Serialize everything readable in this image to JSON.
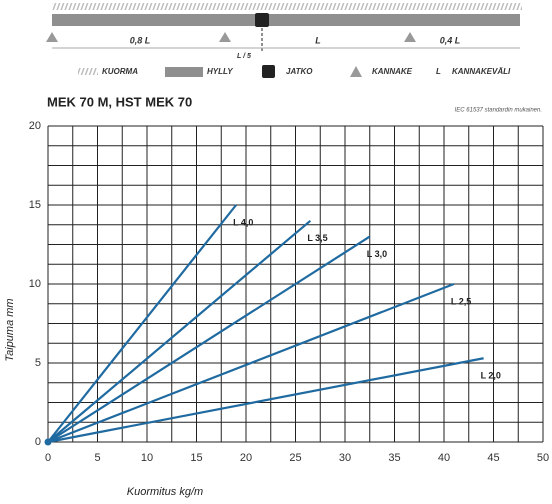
{
  "diagram": {
    "spans": [
      "0,8 L",
      "L",
      "0,4 L"
    ],
    "joint_label": "L / 5",
    "legend": [
      "KUORMA",
      "HYLLY",
      "JATKO",
      "KANNAKE"
    ],
    "span_symbol": "L",
    "span_label": "KANNAKEVÄLI"
  },
  "chart_data": {
    "type": "line",
    "title": "MEK 70 M, HST MEK 70",
    "note": "IEC 61537 standardin mukainen.",
    "x_label": "Kuormitus kg/m",
    "y_label": "Taipuma mm",
    "xlim": [
      0,
      50
    ],
    "ylim": [
      0,
      20
    ],
    "xticks": [
      0,
      5,
      10,
      15,
      20,
      25,
      30,
      35,
      40,
      45,
      50
    ],
    "yticks": [
      0,
      5,
      10,
      15,
      20
    ],
    "grid": true,
    "minor_grid": {
      "x": 2.5,
      "y": 1.25
    },
    "series": [
      {
        "name": "L 4,0",
        "color": "#1f6aa0",
        "x": [
          0,
          19
        ],
        "values": [
          0,
          15
        ]
      },
      {
        "name": "L 3,5",
        "color": "#1f6aa0",
        "x": [
          0,
          26.5
        ],
        "values": [
          0,
          14
        ]
      },
      {
        "name": "L 3,0",
        "color": "#1f6aa0",
        "x": [
          0,
          32.5
        ],
        "values": [
          0,
          13
        ]
      },
      {
        "name": "L 2,5",
        "color": "#1f6aa0",
        "x": [
          0,
          41
        ],
        "values": [
          0,
          10
        ]
      },
      {
        "name": "L 2,0",
        "color": "#1f6aa0",
        "x": [
          0,
          44
        ],
        "values": [
          0,
          5.3
        ]
      }
    ]
  }
}
